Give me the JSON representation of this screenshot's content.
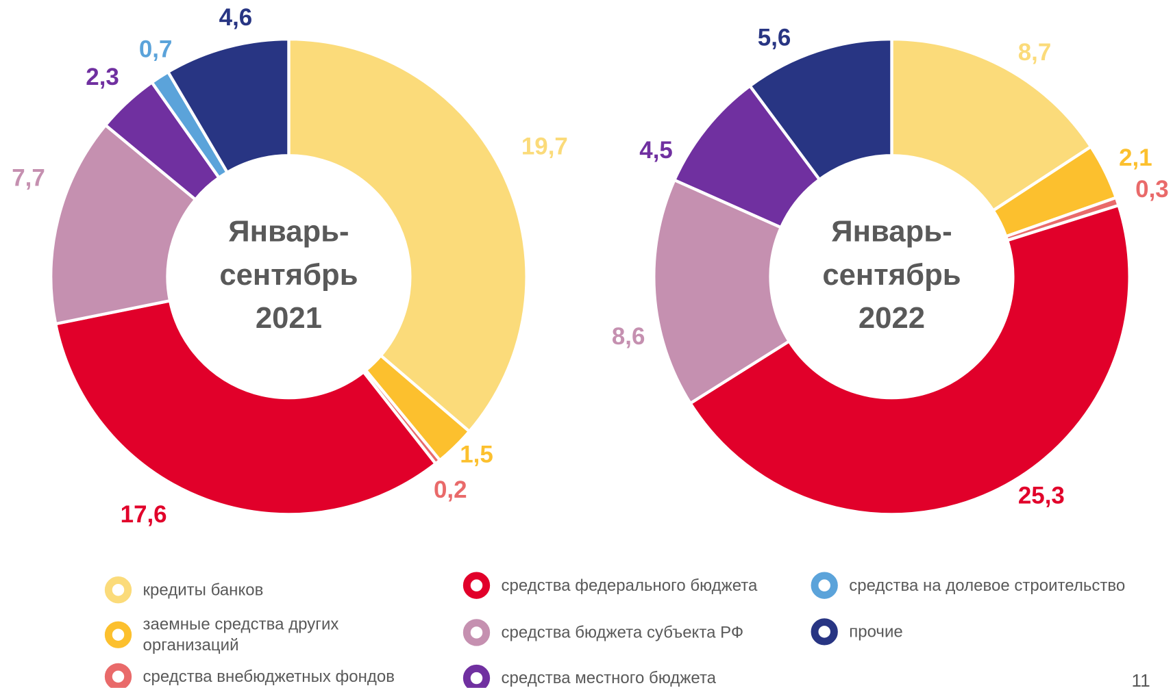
{
  "chart_data": [
    {
      "type": "pie",
      "title": [
        "Январь-",
        "сентябрь",
        "2021"
      ],
      "values": [
        19.7,
        1.5,
        0.2,
        17.6,
        7.7,
        2.3,
        0.7,
        4.6
      ],
      "value_labels": [
        "19,7",
        "1,5",
        "0,2",
        "17,6",
        "7,7",
        "2,3",
        "0,7",
        "4,6"
      ]
    },
    {
      "type": "pie",
      "title": [
        "Январь-",
        "сентябрь",
        "2022"
      ],
      "values": [
        8.7,
        2.1,
        0.3,
        25.3,
        8.6,
        4.5,
        null,
        5.6
      ],
      "value_labels": [
        "8,7",
        "2,1",
        "0,3",
        "25,3",
        "8,6",
        "4,5",
        null,
        "5,6"
      ]
    }
  ],
  "legend": {
    "categories": [
      "кредиты банков",
      "заемные средства других организаций",
      "средства внебюджетных фондов",
      "средства федерального бюджета",
      "средства бюджета субъекта РФ",
      "средства местного бюджета",
      "средства на долевое строительство",
      "прочие"
    ],
    "colors": [
      "#fbdb7a",
      "#fcc02e",
      "#e96a6a",
      "#e1002a",
      "#c590b0",
      "#7030a0",
      "#5ba3da",
      "#283583"
    ]
  },
  "page_number": "11"
}
